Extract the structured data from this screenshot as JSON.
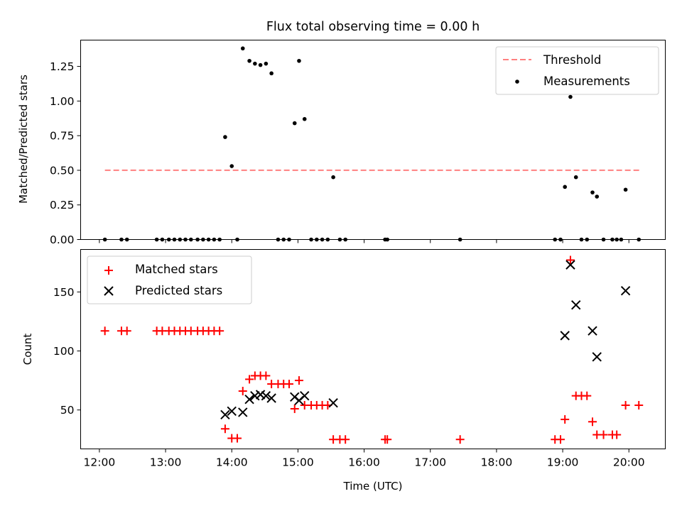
{
  "chart_data": [
    {
      "type": "scatter",
      "title": "Flux total observing time = 0.00 h",
      "xlabel": "",
      "ylabel": "Matched/Predicted stars",
      "xlim": [
        "11:43",
        "20:33"
      ],
      "ylim": [
        0.0,
        1.44
      ],
      "x_ticks": [
        "12:00",
        "13:00",
        "14:00",
        "15:00",
        "16:00",
        "17:00",
        "18:00",
        "19:00",
        "20:00"
      ],
      "x_tick_labels_visible": false,
      "y_ticks": [
        0.0,
        0.25,
        0.5,
        0.75,
        1.0,
        1.25
      ],
      "y_tick_labels": [
        "0.00",
        "0.25",
        "0.50",
        "0.75",
        "1.00",
        "1.25"
      ],
      "grid": false,
      "legend_position": "upper right",
      "series": [
        {
          "name": "Threshold",
          "kind": "line",
          "style": "dashed",
          "color": "#ff8080",
          "points": [
            [
              "12:05",
              0.5
            ],
            [
              "20:10",
              0.5
            ]
          ]
        },
        {
          "name": "Measurements",
          "kind": "scatter",
          "marker": "dot",
          "color": "#000000",
          "points": [
            [
              "12:05",
              0
            ],
            [
              "12:20",
              0
            ],
            [
              "12:25",
              0
            ],
            [
              "12:52",
              0
            ],
            [
              "12:57",
              0
            ],
            [
              "13:03",
              0
            ],
            [
              "13:08",
              0
            ],
            [
              "13:13",
              0
            ],
            [
              "13:18",
              0
            ],
            [
              "13:23",
              0
            ],
            [
              "13:29",
              0
            ],
            [
              "13:34",
              0
            ],
            [
              "13:39",
              0
            ],
            [
              "13:44",
              0
            ],
            [
              "13:49",
              0
            ],
            [
              "13:54",
              0.74
            ],
            [
              "14:00",
              0.53
            ],
            [
              "14:05",
              0
            ],
            [
              "14:10",
              1.38
            ],
            [
              "14:16",
              1.29
            ],
            [
              "14:21",
              1.27
            ],
            [
              "14:26",
              1.26
            ],
            [
              "14:31",
              1.27
            ],
            [
              "14:36",
              1.2
            ],
            [
              "14:42",
              0
            ],
            [
              "14:47",
              0
            ],
            [
              "14:52",
              0
            ],
            [
              "14:57",
              0.84
            ],
            [
              "15:01",
              1.29
            ],
            [
              "15:06",
              0.87
            ],
            [
              "15:12",
              0
            ],
            [
              "15:17",
              0
            ],
            [
              "15:22",
              0
            ],
            [
              "15:27",
              0
            ],
            [
              "15:32",
              0.45
            ],
            [
              "15:38",
              0
            ],
            [
              "15:43",
              0
            ],
            [
              "16:19",
              0
            ],
            [
              "16:21",
              0
            ],
            [
              "17:27",
              0
            ],
            [
              "18:53",
              0
            ],
            [
              "18:58",
              0
            ],
            [
              "19:02",
              0.38
            ],
            [
              "19:07",
              1.03
            ],
            [
              "19:12",
              0.45
            ],
            [
              "19:17",
              0
            ],
            [
              "19:22",
              0
            ],
            [
              "19:27",
              0.34
            ],
            [
              "19:31",
              0.31
            ],
            [
              "19:37",
              0
            ],
            [
              "19:45",
              0
            ],
            [
              "19:49",
              0
            ],
            [
              "19:53",
              0
            ],
            [
              "19:57",
              0.36
            ],
            [
              "20:09",
              0
            ]
          ]
        }
      ]
    },
    {
      "type": "scatter",
      "title": "",
      "xlabel": "Time (UTC)",
      "ylabel": "Count",
      "xlim": [
        "11:43",
        "20:33"
      ],
      "ylim": [
        17,
        186
      ],
      "x_ticks": [
        "12:00",
        "13:00",
        "14:00",
        "15:00",
        "16:00",
        "17:00",
        "18:00",
        "19:00",
        "20:00"
      ],
      "x_tick_labels": [
        "12:00",
        "13:00",
        "14:00",
        "15:00",
        "16:00",
        "17:00",
        "18:00",
        "19:00",
        "20:00"
      ],
      "y_ticks": [
        50,
        100,
        150
      ],
      "y_tick_labels": [
        "50",
        "100",
        "150"
      ],
      "grid": false,
      "legend_position": "upper left",
      "series": [
        {
          "name": "Matched stars",
          "kind": "scatter",
          "marker": "plus",
          "color": "#ff0000",
          "points": [
            [
              "12:05",
              117
            ],
            [
              "12:20",
              117
            ],
            [
              "12:25",
              117
            ],
            [
              "12:52",
              117
            ],
            [
              "12:57",
              117
            ],
            [
              "13:03",
              117
            ],
            [
              "13:08",
              117
            ],
            [
              "13:13",
              117
            ],
            [
              "13:18",
              117
            ],
            [
              "13:23",
              117
            ],
            [
              "13:29",
              117
            ],
            [
              "13:34",
              117
            ],
            [
              "13:39",
              117
            ],
            [
              "13:44",
              117
            ],
            [
              "13:49",
              117
            ],
            [
              "13:54",
              34
            ],
            [
              "14:00",
              26
            ],
            [
              "14:05",
              26
            ],
            [
              "14:10",
              66
            ],
            [
              "14:16",
              76
            ],
            [
              "14:21",
              79
            ],
            [
              "14:26",
              79
            ],
            [
              "14:31",
              79
            ],
            [
              "14:36",
              72
            ],
            [
              "14:42",
              72
            ],
            [
              "14:47",
              72
            ],
            [
              "14:52",
              72
            ],
            [
              "14:57",
              51
            ],
            [
              "15:01",
              75
            ],
            [
              "15:06",
              54
            ],
            [
              "15:12",
              54
            ],
            [
              "15:17",
              54
            ],
            [
              "15:22",
              54
            ],
            [
              "15:27",
              54
            ],
            [
              "15:32",
              25
            ],
            [
              "15:38",
              25
            ],
            [
              "15:43",
              25
            ],
            [
              "16:19",
              25
            ],
            [
              "16:21",
              25
            ],
            [
              "17:27",
              25
            ],
            [
              "18:53",
              25
            ],
            [
              "18:58",
              25
            ],
            [
              "19:02",
              42
            ],
            [
              "19:07",
              177
            ],
            [
              "19:12",
              62
            ],
            [
              "19:17",
              62
            ],
            [
              "19:22",
              62
            ],
            [
              "19:27",
              40
            ],
            [
              "19:31",
              29
            ],
            [
              "19:37",
              29
            ],
            [
              "19:45",
              29
            ],
            [
              "19:49",
              29
            ],
            [
              "19:57",
              54
            ],
            [
              "20:09",
              54
            ]
          ]
        },
        {
          "name": "Predicted stars",
          "kind": "scatter",
          "marker": "x",
          "color": "#000000",
          "points": [
            [
              "13:54",
              46
            ],
            [
              "14:00",
              49
            ],
            [
              "14:10",
              48
            ],
            [
              "14:16",
              59
            ],
            [
              "14:21",
              62
            ],
            [
              "14:26",
              63
            ],
            [
              "14:31",
              62
            ],
            [
              "14:36",
              60
            ],
            [
              "14:57",
              61
            ],
            [
              "15:01",
              58
            ],
            [
              "15:06",
              62
            ],
            [
              "15:32",
              56
            ],
            [
              "19:02",
              113
            ],
            [
              "19:07",
              173
            ],
            [
              "19:12",
              139
            ],
            [
              "19:27",
              117
            ],
            [
              "19:31",
              95
            ],
            [
              "19:57",
              151
            ]
          ]
        }
      ]
    }
  ]
}
